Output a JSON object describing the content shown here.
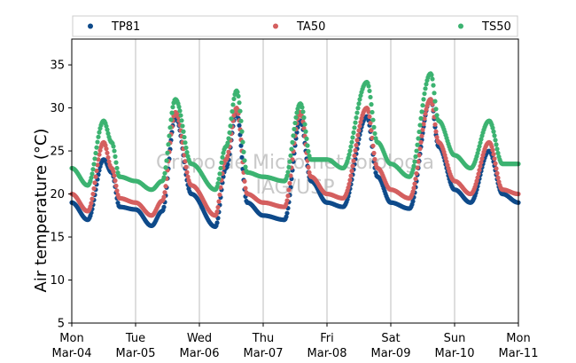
{
  "chart_data": {
    "type": "scatter",
    "ylabel": "Air temperature (°C)",
    "ylim": [
      5,
      38
    ],
    "yticks": [
      "5",
      "10",
      "15",
      "20",
      "25",
      "30",
      "35"
    ],
    "xlim": [
      "2019-03-04",
      "2019-03-11"
    ],
    "xticks": [
      {
        "weekday": "Mon",
        "date": "Mar-04"
      },
      {
        "weekday": "Tue",
        "date": "Mar-05"
      },
      {
        "weekday": "Wed",
        "date": "Mar-06"
      },
      {
        "weekday": "Thu",
        "date": "Mar-07"
      },
      {
        "weekday": "Fri",
        "date": "Mar-08"
      },
      {
        "weekday": "Sat",
        "date": "Mar-09"
      },
      {
        "weekday": "Sun",
        "date": "Mar-10"
      },
      {
        "weekday": "Mon",
        "date": "Mar-11"
      }
    ],
    "grid": "vertical",
    "legend_position": "top",
    "watermark": [
      "Grupo de Micrometeorologia",
      "IAG/USP"
    ],
    "series": [
      {
        "name": "TP81",
        "color": "#0e4a8a",
        "x": [
          "2019-03-04 00:00",
          "2019-03-04 06:00",
          "2019-03-04 12:00",
          "2019-03-04 15:00",
          "2019-03-04 18:00",
          "2019-03-05 00:00",
          "2019-03-05 06:00",
          "2019-03-05 10:00",
          "2019-03-05 15:00",
          "2019-03-05 21:00",
          "2019-03-06 06:00",
          "2019-03-06 10:00",
          "2019-03-06 14:00",
          "2019-03-06 18:00",
          "2019-03-07 00:00",
          "2019-03-07 08:00",
          "2019-03-07 14:00",
          "2019-03-07 18:00",
          "2019-03-08 00:00",
          "2019-03-08 06:00",
          "2019-03-08 15:00",
          "2019-03-08 19:00",
          "2019-03-09 00:00",
          "2019-03-09 07:00",
          "2019-03-09 15:00",
          "2019-03-09 18:00",
          "2019-03-10 00:00",
          "2019-03-10 06:00",
          "2019-03-10 13:00",
          "2019-03-10 18:00",
          "2019-03-11 00:00"
        ],
        "y": [
          19.0,
          17.0,
          24.0,
          22.5,
          18.5,
          18.2,
          16.3,
          18.0,
          29.0,
          20.0,
          16.2,
          23.0,
          29.5,
          19.0,
          17.5,
          17.0,
          28.5,
          21.5,
          19.0,
          18.5,
          29.0,
          22.0,
          19.0,
          18.3,
          31.0,
          25.5,
          20.5,
          19.0,
          25.0,
          20.0,
          19.0
        ]
      },
      {
        "name": "TA50",
        "color": "#d45f5f",
        "x": [
          "2019-03-04 00:00",
          "2019-03-04 06:00",
          "2019-03-04 12:00",
          "2019-03-04 15:00",
          "2019-03-04 18:00",
          "2019-03-05 00:00",
          "2019-03-05 06:00",
          "2019-03-05 10:00",
          "2019-03-05 15:00",
          "2019-03-05 21:00",
          "2019-03-06 06:00",
          "2019-03-06 10:00",
          "2019-03-06 14:00",
          "2019-03-06 18:00",
          "2019-03-07 00:00",
          "2019-03-07 08:00",
          "2019-03-07 14:00",
          "2019-03-07 18:00",
          "2019-03-08 00:00",
          "2019-03-08 06:00",
          "2019-03-08 15:00",
          "2019-03-08 19:00",
          "2019-03-09 00:00",
          "2019-03-09 07:00",
          "2019-03-09 15:00",
          "2019-03-09 18:00",
          "2019-03-10 00:00",
          "2019-03-10 06:00",
          "2019-03-10 13:00",
          "2019-03-10 18:00",
          "2019-03-11 00:00"
        ],
        "y": [
          20.0,
          18.0,
          26.0,
          23.0,
          19.5,
          19.0,
          17.5,
          19.2,
          29.5,
          21.0,
          17.5,
          24.0,
          30.0,
          20.0,
          19.0,
          18.5,
          29.5,
          22.0,
          20.0,
          19.5,
          30.0,
          23.0,
          20.5,
          19.5,
          31.0,
          26.0,
          21.5,
          20.0,
          26.0,
          20.5,
          20.0
        ]
      },
      {
        "name": "TS50",
        "color": "#3cb371",
        "x": [
          "2019-03-04 00:00",
          "2019-03-04 06:00",
          "2019-03-04 12:00",
          "2019-03-04 15:00",
          "2019-03-04 18:00",
          "2019-03-05 00:00",
          "2019-03-05 06:00",
          "2019-03-05 10:00",
          "2019-03-05 15:00",
          "2019-03-05 21:00",
          "2019-03-06 06:00",
          "2019-03-06 10:00",
          "2019-03-06 14:00",
          "2019-03-06 18:00",
          "2019-03-07 00:00",
          "2019-03-07 08:00",
          "2019-03-07 14:00",
          "2019-03-07 18:00",
          "2019-03-08 00:00",
          "2019-03-08 06:00",
          "2019-03-08 15:00",
          "2019-03-08 19:00",
          "2019-03-09 00:00",
          "2019-03-09 07:00",
          "2019-03-09 15:00",
          "2019-03-09 18:00",
          "2019-03-10 00:00",
          "2019-03-10 06:00",
          "2019-03-10 13:00",
          "2019-03-10 18:00",
          "2019-03-11 00:00"
        ],
        "y": [
          23.0,
          21.0,
          28.5,
          26.0,
          22.0,
          21.5,
          20.5,
          21.5,
          31.0,
          23.5,
          20.5,
          25.5,
          32.0,
          22.5,
          22.0,
          21.5,
          30.5,
          24.0,
          24.0,
          23.0,
          33.0,
          26.0,
          23.5,
          22.0,
          34.0,
          28.5,
          24.5,
          23.0,
          28.5,
          23.5,
          23.5
        ]
      }
    ]
  }
}
